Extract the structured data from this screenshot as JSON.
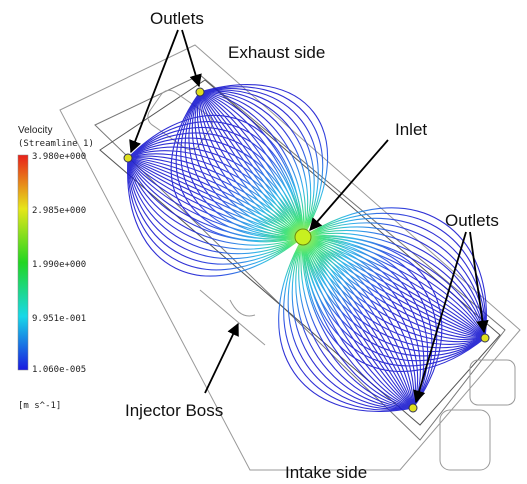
{
  "legend": {
    "title": "Velocity",
    "subtitle": "(Streamline 1)",
    "ticks": [
      "3.980e+000",
      "2.985e+000",
      "1.990e+000",
      "9.951e-001",
      "1.060e-005"
    ],
    "unit": "[m s^-1]"
  },
  "labels": {
    "outlets_top": "Outlets",
    "exhaust": "Exhaust side",
    "inlet": "Inlet",
    "outlets_right": "Outlets",
    "injector": "Injector Boss",
    "intake": "Intake side"
  }
}
